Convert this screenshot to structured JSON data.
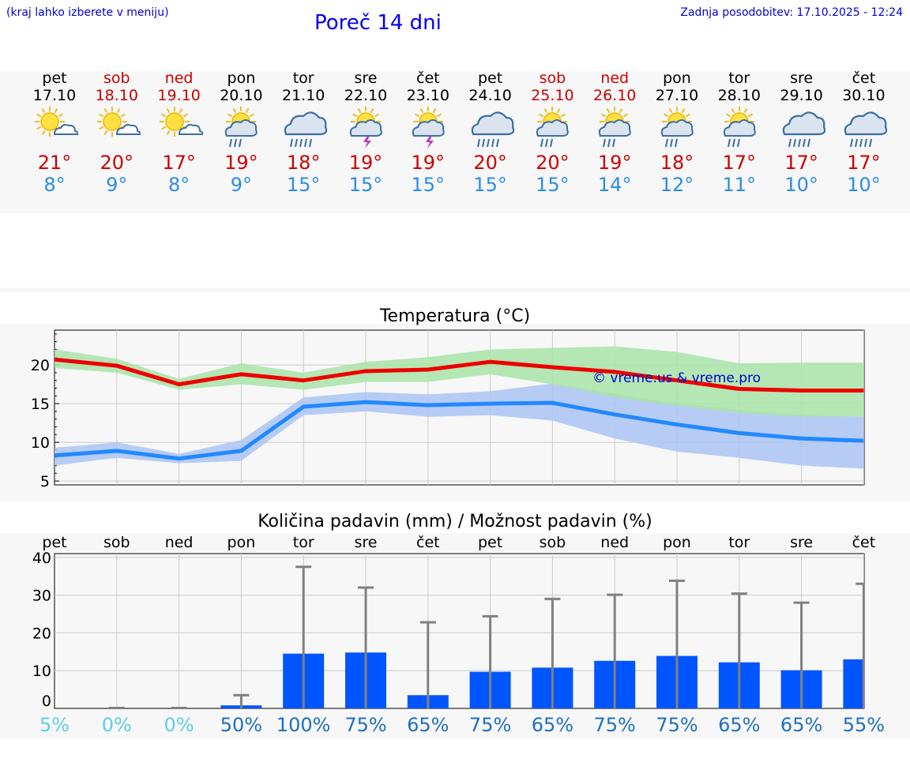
{
  "header": {
    "hint": "(kraj lahko izberete v meniju)",
    "title": "Poreč 14 dni",
    "updated": "Zadnja posodobitev: 17.10.2025 - 12:24"
  },
  "days": [
    {
      "name": "pet",
      "date": "17.10",
      "weekend": false,
      "icon": "sun-cloud-icon",
      "max": "21°",
      "min": "8°"
    },
    {
      "name": "sob",
      "date": "18.10",
      "weekend": true,
      "icon": "sun-cloud-icon",
      "max": "20°",
      "min": "9°"
    },
    {
      "name": "ned",
      "date": "19.10",
      "weekend": true,
      "icon": "sun-cloud-icon",
      "max": "17°",
      "min": "8°"
    },
    {
      "name": "pon",
      "date": "20.10",
      "weekend": false,
      "icon": "sun-cloud-rain-icon",
      "max": "19°",
      "min": "9°"
    },
    {
      "name": "tor",
      "date": "21.10",
      "weekend": false,
      "icon": "cloud-rain-icon",
      "max": "18°",
      "min": "15°"
    },
    {
      "name": "sre",
      "date": "22.10",
      "weekend": false,
      "icon": "sun-thunder-icon",
      "max": "19°",
      "min": "15°"
    },
    {
      "name": "čet",
      "date": "23.10",
      "weekend": false,
      "icon": "sun-thunder-icon",
      "max": "19°",
      "min": "15°"
    },
    {
      "name": "pet",
      "date": "24.10",
      "weekend": false,
      "icon": "cloud-rain-icon",
      "max": "20°",
      "min": "15°"
    },
    {
      "name": "sob",
      "date": "25.10",
      "weekend": true,
      "icon": "sun-cloud-rain-icon",
      "max": "20°",
      "min": "15°"
    },
    {
      "name": "ned",
      "date": "26.10",
      "weekend": true,
      "icon": "sun-cloud-rain-icon",
      "max": "19°",
      "min": "14°"
    },
    {
      "name": "pon",
      "date": "27.10",
      "weekend": false,
      "icon": "sun-cloud-rain-icon",
      "max": "18°",
      "min": "12°"
    },
    {
      "name": "tor",
      "date": "28.10",
      "weekend": false,
      "icon": "sun-cloud-rain-icon",
      "max": "17°",
      "min": "11°"
    },
    {
      "name": "sre",
      "date": "29.10",
      "weekend": false,
      "icon": "cloud-rain-icon",
      "max": "17°",
      "min": "10°"
    },
    {
      "name": "čet",
      "date": "30.10",
      "weekend": false,
      "icon": "cloud-rain-icon",
      "max": "17°",
      "min": "10°"
    }
  ],
  "colors": {
    "max_line": "#ee0000",
    "min_line": "#2288ff",
    "max_band": "#a8e4a8",
    "min_band": "#aac4f4",
    "bar": "#0055ff",
    "whisker": "#808080",
    "prob_low": "#5fcde6",
    "prob_high": "#1f6fbf",
    "watermark": "#0000cc"
  },
  "chart_data": [
    {
      "type": "line",
      "title": "Temperatura (°C)",
      "watermark": "© vreme.us & vreme.pro",
      "x": [
        0,
        1,
        2,
        3,
        4,
        5,
        6,
        7,
        8,
        9,
        10,
        11,
        12,
        13
      ],
      "ylim": [
        4.5,
        24.5
      ],
      "yticks": [
        5,
        10,
        15,
        20
      ],
      "series": [
        {
          "name": "max",
          "values": [
            20.7,
            19.9,
            17.5,
            18.8,
            18.0,
            19.2,
            19.4,
            20.4,
            19.7,
            19.1,
            18.0,
            16.9,
            16.7,
            16.7
          ],
          "band_low": [
            19.6,
            19.0,
            16.8,
            17.5,
            16.8,
            17.8,
            17.8,
            18.8,
            17.5,
            15.8,
            14.7,
            13.8,
            13.3,
            13.3
          ],
          "band_high": [
            22.0,
            20.8,
            18.2,
            20.2,
            19.0,
            20.4,
            21.0,
            22.0,
            22.2,
            22.4,
            21.7,
            20.2,
            20.3,
            20.3
          ]
        },
        {
          "name": "min",
          "values": [
            8.3,
            8.9,
            7.9,
            8.9,
            14.6,
            15.2,
            14.8,
            15.0,
            15.1,
            13.6,
            12.3,
            11.2,
            10.5,
            10.2
          ],
          "band_low": [
            7.0,
            8.0,
            7.3,
            7.6,
            13.5,
            14.0,
            13.3,
            13.5,
            12.8,
            10.5,
            8.8,
            8.0,
            7.0,
            6.6
          ],
          "band_high": [
            9.3,
            10.0,
            8.5,
            10.3,
            15.8,
            16.5,
            16.2,
            16.6,
            17.6,
            16.3,
            15.0,
            14.2,
            13.5,
            13.3
          ]
        }
      ]
    },
    {
      "type": "bar",
      "title": "Količina padavin (mm) / Možnost padavin (%)",
      "categories": [
        "pet",
        "sob",
        "ned",
        "pon",
        "tor",
        "sre",
        "čet",
        "pet",
        "sob",
        "ned",
        "pon",
        "tor",
        "sre",
        "čet"
      ],
      "values": [
        0,
        0,
        0,
        0.8,
        14.5,
        14.8,
        3.5,
        9.7,
        10.8,
        12.6,
        13.9,
        12.2,
        10.1,
        13.0
      ],
      "err_high": [
        0,
        0.1,
        0.1,
        3.5,
        37.5,
        32.0,
        22.8,
        24.4,
        29.0,
        30.1,
        33.8,
        30.4,
        28.0,
        33.0
      ],
      "probability": [
        "5%",
        "0%",
        "0%",
        "50%",
        "100%",
        "75%",
        "65%",
        "75%",
        "65%",
        "75%",
        "75%",
        "65%",
        "65%",
        "55%"
      ],
      "ylim": [
        0,
        41
      ],
      "yticks": [
        0,
        10,
        20,
        30,
        40
      ]
    }
  ]
}
